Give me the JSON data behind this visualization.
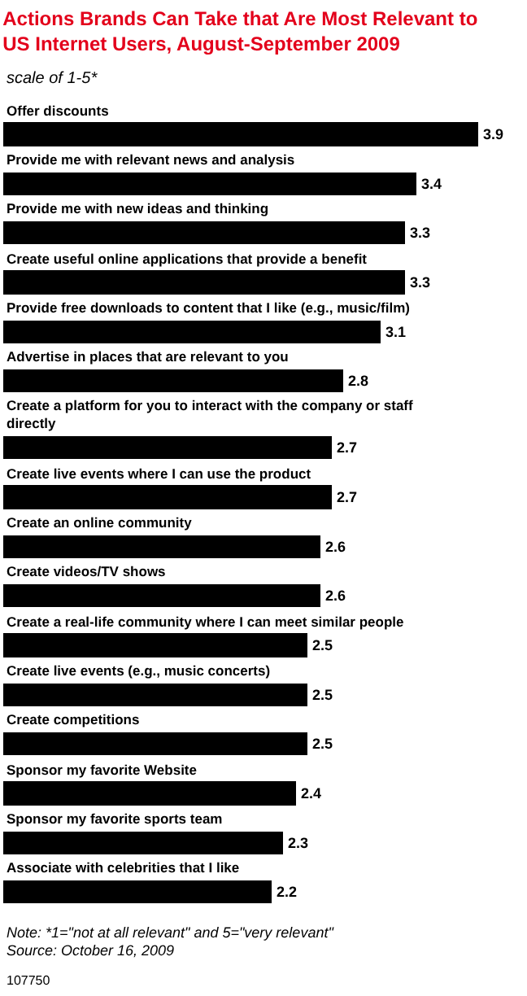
{
  "chart_data": {
    "type": "bar",
    "orientation": "horizontal",
    "title": "Actions Brands Can Take that Are Most Relevant to US Internet Users, August-September 2009",
    "subtitle": "scale of 1-5*",
    "categories": [
      "Offer discounts",
      "Provide me with relevant news and analysis",
      "Provide me with new ideas and thinking",
      "Create useful online applications that provide a benefit",
      "Provide free downloads to content that I like (e.g., music/film)",
      "Advertise in places that are relevant to you",
      "Create a platform for you to interact with the company or staff directly",
      "Create live events where I can use the product",
      "Create an online community",
      "Create videos/TV shows",
      "Create a real-life community where I can meet similar people",
      "Create live events (e.g., music concerts)",
      "Create competitions",
      "Sponsor my favorite Website",
      "Sponsor my favorite sports team",
      "Associate with celebrities that I like"
    ],
    "values": [
      3.9,
      3.4,
      3.3,
      3.3,
      3.1,
      2.8,
      2.7,
      2.7,
      2.6,
      2.6,
      2.5,
      2.5,
      2.5,
      2.4,
      2.3,
      2.2
    ],
    "color": "#000000",
    "data_labels": true,
    "annotations": [
      "Note: *1=\"not at all relevant\" and 5=\"very relevant\"",
      "Source: October 16, 2009",
      "107750"
    ]
  }
}
